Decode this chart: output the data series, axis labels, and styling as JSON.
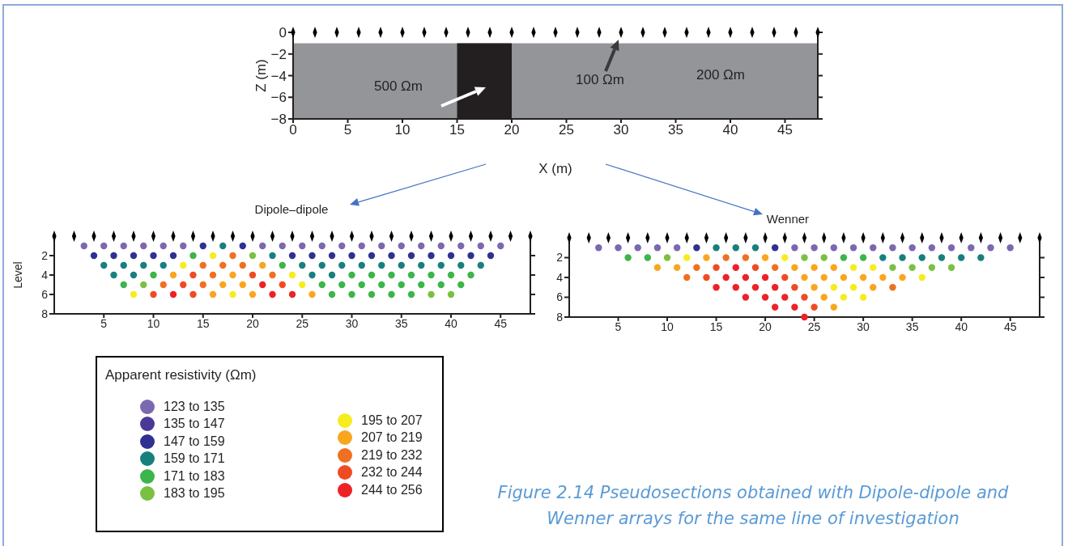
{
  "chart_data": [
    {
      "type": "scatter",
      "xlabel": "X (m)",
      "ylabel": "Z (m)",
      "xlim": [
        0,
        48
      ],
      "ylim": [
        -8,
        0
      ],
      "xticks": [
        0,
        5,
        10,
        15,
        20,
        25,
        30,
        35,
        40,
        45
      ],
      "yticks": [
        {
          "value": 0,
          "label": "0"
        },
        {
          "value": -2,
          "label": "−2"
        },
        {
          "value": -4,
          "label": "−4"
        },
        {
          "value": -6,
          "label": "−6"
        },
        {
          "value": -8,
          "label": "−8"
        }
      ],
      "marker": "diamond",
      "bands": [
        {
          "axis": "y",
          "from": -1,
          "to": -8,
          "color": "#939598"
        },
        {
          "axis": "x",
          "from": 15,
          "to": 20,
          "color": "#231f20"
        }
      ],
      "annotations": [
        "500 Ωm",
        "100 Ωm",
        "200 Ωm"
      ],
      "series": [
        {
          "color": "#000000",
          "x": [
            0,
            2,
            4,
            6,
            8,
            10,
            12,
            14,
            16,
            18,
            20,
            22,
            24,
            26,
            28,
            30,
            32,
            34,
            36,
            38,
            40,
            42,
            44,
            46,
            48
          ],
          "values": [
            0,
            0,
            0,
            0,
            0,
            0,
            0,
            0,
            0,
            0,
            0,
            0,
            0,
            0,
            0,
            0,
            0,
            0,
            0,
            0,
            0,
            0,
            0,
            0,
            0
          ]
        }
      ]
    },
    {
      "type": "scatter",
      "title": "Dipole–dipole",
      "ylabel": "Level",
      "xlim": [
        0,
        48
      ],
      "ylim": [
        8,
        0
      ],
      "xticks": [
        5,
        10,
        15,
        20,
        25,
        30,
        35,
        40,
        45
      ],
      "yticks": [
        2,
        4,
        6,
        8
      ],
      "marker": "circle",
      "legend": "bottom left",
      "legend_title": "Apparent resistivity (Ωm)",
      "series": [
        {
          "color": "#000000",
          "marker": "diamond",
          "x": [
            0,
            2,
            4,
            6,
            8,
            10,
            12,
            14,
            16,
            18,
            20,
            22,
            24,
            26,
            28,
            30,
            32,
            34,
            36,
            38,
            40,
            42,
            44,
            46,
            48
          ],
          "values": [
            0,
            0,
            0,
            0,
            0,
            0,
            0,
            0,
            0,
            0,
            0,
            0,
            0,
            0,
            0,
            0,
            0,
            0,
            0,
            0,
            0,
            0,
            0,
            0,
            0
          ]
        },
        {
          "name": "123 to 135",
          "color": "#7b68b0",
          "x": [
            3,
            5,
            7,
            9,
            11,
            13,
            21,
            23,
            25,
            27,
            29,
            31,
            33,
            35,
            37,
            39,
            41,
            43,
            45
          ],
          "values": [
            1,
            1,
            1,
            1,
            1,
            1,
            1,
            1,
            1,
            1,
            1,
            1,
            1,
            1,
            1,
            1,
            1,
            1,
            1
          ]
        },
        {
          "name": "135 to 147",
          "color": "#4b3996"
        },
        {
          "name": "147 to 159",
          "color": "#2e3192",
          "x": [
            15,
            19,
            4,
            6,
            8,
            10,
            12,
            24,
            26,
            28,
            30,
            32,
            34,
            36,
            38,
            40,
            42,
            44
          ],
          "values": [
            1,
            1,
            2,
            2,
            2,
            2,
            2,
            2,
            2,
            2,
            2,
            2,
            2,
            2,
            2,
            2,
            2,
            2
          ]
        },
        {
          "name": "159 to 171",
          "color": "#17807e",
          "x": [
            17,
            22,
            5,
            7,
            9,
            11,
            25,
            27,
            29,
            31,
            33,
            35,
            37,
            39,
            41,
            43,
            6,
            8,
            26,
            28
          ],
          "values": [
            1,
            2,
            3,
            3,
            3,
            3,
            3,
            3,
            3,
            3,
            3,
            3,
            3,
            3,
            3,
            3,
            4,
            4,
            4,
            4
          ]
        },
        {
          "name": "171 to 183",
          "color": "#3cb54a",
          "x": [
            14,
            23,
            10,
            30,
            32,
            34,
            36,
            38,
            40,
            42,
            7,
            27,
            29,
            31,
            33,
            35,
            37,
            39,
            41,
            28,
            30,
            32,
            34,
            36
          ],
          "values": [
            2,
            3,
            4,
            4,
            4,
            4,
            4,
            4,
            4,
            4,
            5,
            5,
            5,
            5,
            5,
            5,
            5,
            5,
            5,
            6,
            6,
            6,
            6,
            6
          ]
        },
        {
          "name": "183 to 195",
          "color": "#7ac143",
          "x": [
            20,
            9,
            38,
            40
          ],
          "values": [
            2,
            5,
            6,
            6
          ]
        },
        {
          "name": "195 to 207",
          "color": "#f7ec1e",
          "x": [
            16,
            13,
            24,
            25,
            8,
            18
          ],
          "values": [
            2,
            3,
            4,
            5,
            6,
            6
          ]
        },
        {
          "name": "207 to 219",
          "color": "#f9a61f",
          "x": [
            21,
            12,
            18,
            17,
            19,
            16,
            20,
            26
          ],
          "values": [
            3,
            4,
            4,
            5,
            5,
            6,
            6,
            6
          ]
        },
        {
          "name": "219 to 232",
          "color": "#f07022",
          "x": [
            18,
            15,
            17,
            19,
            16,
            22,
            11,
            15
          ],
          "values": [
            2,
            3,
            3,
            3,
            4,
            4,
            5,
            5
          ]
        },
        {
          "name": "232 to 244",
          "color": "#ef4b23",
          "x": [
            14,
            20,
            13,
            23,
            10,
            14
          ],
          "values": [
            4,
            4,
            5,
            5,
            6,
            6
          ]
        },
        {
          "name": "244 to 256",
          "color": "#ec2227",
          "x": [
            21,
            12,
            22,
            24
          ],
          "values": [
            5,
            6,
            6,
            6
          ]
        }
      ]
    },
    {
      "type": "scatter",
      "title": "Wenner",
      "xlim": [
        0,
        48
      ],
      "ylim": [
        8,
        0
      ],
      "xticks": [
        5,
        10,
        15,
        20,
        25,
        30,
        35,
        40,
        45
      ],
      "yticks": [
        2,
        4,
        6,
        8
      ],
      "marker": "circle",
      "annotations": [
        "Figure 2.14 Pseudosections obtained with Dipole-dipole and Wenner arrays for the same line of investigation"
      ],
      "series": [
        {
          "color": "#000000",
          "marker": "diamond",
          "x": [
            0,
            2,
            4,
            6,
            8,
            10,
            12,
            14,
            16,
            18,
            20,
            22,
            24,
            26,
            28,
            30,
            32,
            34,
            36,
            38,
            40,
            42,
            44,
            46,
            48
          ],
          "values": [
            0,
            0,
            0,
            0,
            0,
            0,
            0,
            0,
            0,
            0,
            0,
            0,
            0,
            0,
            0,
            0,
            0,
            0,
            0,
            0,
            0,
            0,
            0,
            0,
            0
          ]
        },
        {
          "color": "#7b68b0",
          "x": [
            3,
            5,
            7,
            9,
            11,
            23,
            25,
            27,
            29,
            31,
            33,
            35,
            37,
            39,
            41,
            43,
            45
          ],
          "values": [
            1,
            1,
            1,
            1,
            1,
            1,
            1,
            1,
            1,
            1,
            1,
            1,
            1,
            1,
            1,
            1,
            1
          ]
        },
        {
          "color": "#2e3192",
          "x": [
            13,
            21
          ],
          "values": [
            1,
            1
          ]
        },
        {
          "color": "#17807e",
          "x": [
            15,
            17,
            19,
            32,
            34,
            36,
            38,
            40,
            42
          ],
          "values": [
            1,
            1,
            1,
            2,
            2,
            2,
            2,
            2,
            2
          ]
        },
        {
          "color": "#3cb54a",
          "x": [
            6,
            8,
            28,
            30
          ],
          "values": [
            2,
            2,
            2,
            2
          ]
        },
        {
          "color": "#7ac143",
          "x": [
            10,
            24,
            26,
            33,
            35,
            37,
            39
          ],
          "values": [
            2,
            2,
            2,
            3,
            3,
            3,
            3
          ]
        },
        {
          "color": "#f7ec1e",
          "x": [
            12,
            22,
            29,
            31,
            36,
            27,
            29,
            28,
            30
          ],
          "values": [
            2,
            2,
            3,
            3,
            4,
            5,
            5,
            6,
            6
          ]
        },
        {
          "color": "#f9a61f",
          "x": [
            14,
            20,
            9,
            11,
            23,
            25,
            27,
            24,
            26,
            28,
            30,
            32,
            34,
            25,
            31,
            26,
            27
          ],
          "values": [
            2,
            2,
            3,
            3,
            3,
            3,
            3,
            4,
            4,
            4,
            4,
            4,
            4,
            5,
            5,
            6,
            7
          ]
        },
        {
          "color": "#f07022",
          "x": [
            16,
            18,
            13,
            21,
            12,
            33
          ],
          "values": [
            2,
            2,
            3,
            3,
            4,
            5
          ]
        },
        {
          "color": "#ef4b23",
          "x": [
            15,
            19,
            14,
            22,
            23,
            24,
            25
          ],
          "values": [
            3,
            3,
            4,
            4,
            5,
            6,
            7
          ]
        },
        {
          "color": "#ec2227",
          "x": [
            17,
            16,
            18,
            20,
            15,
            17,
            19,
            21,
            18,
            20,
            22,
            21,
            23,
            24
          ],
          "values": [
            3,
            4,
            4,
            4,
            5,
            5,
            5,
            5,
            6,
            6,
            6,
            7,
            7,
            8
          ]
        }
      ]
    }
  ]
}
